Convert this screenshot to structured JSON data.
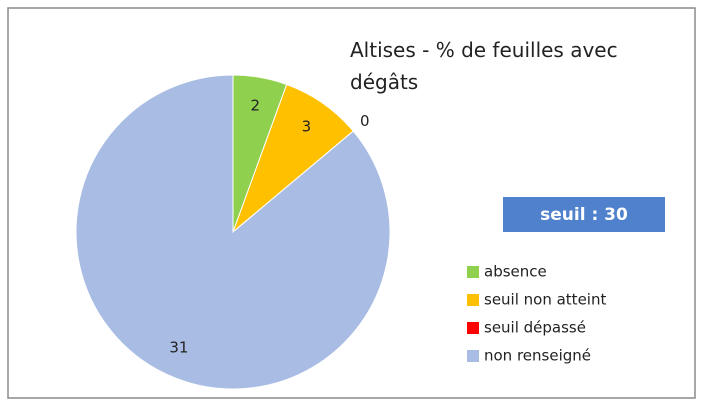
{
  "chart_data": {
    "type": "pie",
    "title": "Altises - % de feuilles avec dégâts",
    "categories": [
      "absence",
      "seuil non atteint",
      "seuil dépassé",
      "non renseigné"
    ],
    "values": [
      2,
      3,
      0,
      31
    ],
    "colors": [
      "#8fd14f",
      "#ffc000",
      "#ff0000",
      "#a9bde4"
    ],
    "annotation": "seuil : 30",
    "legend": "right"
  }
}
